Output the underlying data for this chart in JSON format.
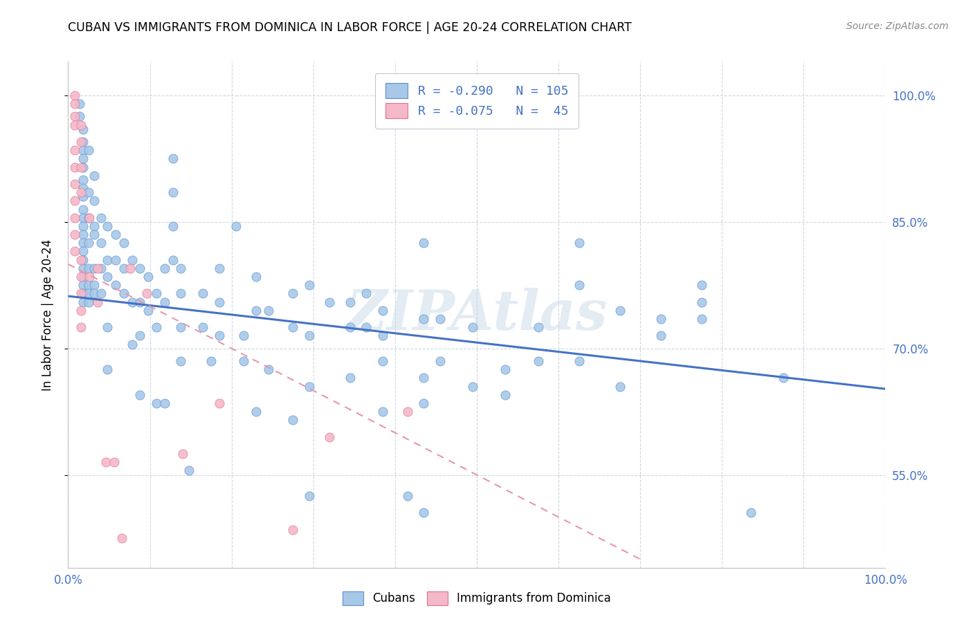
{
  "title": "CUBAN VS IMMIGRANTS FROM DOMINICA IN LABOR FORCE | AGE 20-24 CORRELATION CHART",
  "source": "Source: ZipAtlas.com",
  "ylabel": "In Labor Force | Age 20-24",
  "xlim": [
    0.0,
    1.0
  ],
  "ylim": [
    0.44,
    1.04
  ],
  "x_tick_vals": [
    0.0,
    0.1,
    0.2,
    0.3,
    0.4,
    0.5,
    0.6,
    0.7,
    0.8,
    0.9,
    1.0
  ],
  "x_tick_labels_bottom": [
    "0.0%",
    "",
    "",
    "",
    "",
    "",
    "",
    "",
    "",
    "",
    "100.0%"
  ],
  "y_tick_vals": [
    0.55,
    0.7,
    0.85,
    1.0
  ],
  "y_tick_labels_right": [
    "55.0%",
    "70.0%",
    "85.0%",
    "100.0%"
  ],
  "watermark": "ZIPAtlas",
  "blue_color": "#a8c8e8",
  "pink_color": "#f4b8c8",
  "blue_edge_color": "#5a8fd0",
  "pink_edge_color": "#e07090",
  "blue_line_color": "#4472c4",
  "pink_line_color": "#e896a8",
  "legend_text_color": "#4472c4",
  "blue_scatter": [
    [
      0.014,
      0.99
    ],
    [
      0.014,
      0.975
    ],
    [
      0.018,
      0.96
    ],
    [
      0.018,
      0.945
    ],
    [
      0.018,
      0.935
    ],
    [
      0.018,
      0.925
    ],
    [
      0.018,
      0.915
    ],
    [
      0.018,
      0.9
    ],
    [
      0.018,
      0.89
    ],
    [
      0.018,
      0.88
    ],
    [
      0.018,
      0.865
    ],
    [
      0.018,
      0.855
    ],
    [
      0.018,
      0.845
    ],
    [
      0.018,
      0.835
    ],
    [
      0.018,
      0.825
    ],
    [
      0.018,
      0.815
    ],
    [
      0.018,
      0.805
    ],
    [
      0.018,
      0.795
    ],
    [
      0.018,
      0.785
    ],
    [
      0.018,
      0.775
    ],
    [
      0.018,
      0.765
    ],
    [
      0.018,
      0.755
    ],
    [
      0.025,
      0.935
    ],
    [
      0.025,
      0.885
    ],
    [
      0.025,
      0.855
    ],
    [
      0.025,
      0.825
    ],
    [
      0.025,
      0.795
    ],
    [
      0.025,
      0.775
    ],
    [
      0.025,
      0.765
    ],
    [
      0.025,
      0.755
    ],
    [
      0.032,
      0.905
    ],
    [
      0.032,
      0.875
    ],
    [
      0.032,
      0.845
    ],
    [
      0.032,
      0.835
    ],
    [
      0.032,
      0.795
    ],
    [
      0.032,
      0.775
    ],
    [
      0.032,
      0.765
    ],
    [
      0.04,
      0.855
    ],
    [
      0.04,
      0.825
    ],
    [
      0.04,
      0.795
    ],
    [
      0.04,
      0.765
    ],
    [
      0.048,
      0.845
    ],
    [
      0.048,
      0.805
    ],
    [
      0.048,
      0.785
    ],
    [
      0.048,
      0.725
    ],
    [
      0.048,
      0.675
    ],
    [
      0.058,
      0.835
    ],
    [
      0.058,
      0.805
    ],
    [
      0.058,
      0.775
    ],
    [
      0.068,
      0.825
    ],
    [
      0.068,
      0.795
    ],
    [
      0.068,
      0.765
    ],
    [
      0.078,
      0.805
    ],
    [
      0.078,
      0.755
    ],
    [
      0.078,
      0.705
    ],
    [
      0.088,
      0.795
    ],
    [
      0.088,
      0.755
    ],
    [
      0.088,
      0.715
    ],
    [
      0.088,
      0.645
    ],
    [
      0.098,
      0.785
    ],
    [
      0.098,
      0.745
    ],
    [
      0.108,
      0.765
    ],
    [
      0.108,
      0.725
    ],
    [
      0.108,
      0.635
    ],
    [
      0.118,
      0.795
    ],
    [
      0.118,
      0.755
    ],
    [
      0.118,
      0.635
    ],
    [
      0.128,
      0.925
    ],
    [
      0.128,
      0.885
    ],
    [
      0.128,
      0.845
    ],
    [
      0.128,
      0.805
    ],
    [
      0.138,
      0.795
    ],
    [
      0.138,
      0.765
    ],
    [
      0.138,
      0.725
    ],
    [
      0.138,
      0.685
    ],
    [
      0.148,
      0.555
    ],
    [
      0.165,
      0.765
    ],
    [
      0.165,
      0.725
    ],
    [
      0.175,
      0.685
    ],
    [
      0.185,
      0.795
    ],
    [
      0.185,
      0.755
    ],
    [
      0.185,
      0.715
    ],
    [
      0.205,
      0.845
    ],
    [
      0.215,
      0.715
    ],
    [
      0.215,
      0.685
    ],
    [
      0.23,
      0.785
    ],
    [
      0.23,
      0.745
    ],
    [
      0.23,
      0.625
    ],
    [
      0.245,
      0.745
    ],
    [
      0.245,
      0.675
    ],
    [
      0.275,
      0.765
    ],
    [
      0.275,
      0.725
    ],
    [
      0.275,
      0.615
    ],
    [
      0.295,
      0.775
    ],
    [
      0.295,
      0.715
    ],
    [
      0.295,
      0.655
    ],
    [
      0.295,
      0.525
    ],
    [
      0.32,
      0.755
    ],
    [
      0.345,
      0.755
    ],
    [
      0.345,
      0.725
    ],
    [
      0.345,
      0.665
    ],
    [
      0.365,
      0.765
    ],
    [
      0.365,
      0.725
    ],
    [
      0.385,
      0.745
    ],
    [
      0.385,
      0.715
    ],
    [
      0.385,
      0.685
    ],
    [
      0.385,
      0.625
    ],
    [
      0.415,
      0.525
    ],
    [
      0.435,
      0.825
    ],
    [
      0.435,
      0.735
    ],
    [
      0.435,
      0.665
    ],
    [
      0.435,
      0.635
    ],
    [
      0.435,
      0.505
    ],
    [
      0.455,
      0.735
    ],
    [
      0.455,
      0.685
    ],
    [
      0.495,
      0.725
    ],
    [
      0.495,
      0.655
    ],
    [
      0.535,
      0.675
    ],
    [
      0.535,
      0.645
    ],
    [
      0.575,
      0.725
    ],
    [
      0.575,
      0.685
    ],
    [
      0.625,
      0.825
    ],
    [
      0.625,
      0.775
    ],
    [
      0.625,
      0.685
    ],
    [
      0.675,
      0.745
    ],
    [
      0.675,
      0.655
    ],
    [
      0.725,
      0.735
    ],
    [
      0.725,
      0.715
    ],
    [
      0.775,
      0.775
    ],
    [
      0.775,
      0.755
    ],
    [
      0.775,
      0.735
    ],
    [
      0.835,
      0.505
    ],
    [
      0.875,
      0.665
    ]
  ],
  "pink_scatter": [
    [
      0.008,
      1.0
    ],
    [
      0.008,
      0.99
    ],
    [
      0.008,
      0.975
    ],
    [
      0.008,
      0.965
    ],
    [
      0.008,
      0.935
    ],
    [
      0.008,
      0.915
    ],
    [
      0.008,
      0.895
    ],
    [
      0.008,
      0.875
    ],
    [
      0.008,
      0.855
    ],
    [
      0.008,
      0.835
    ],
    [
      0.008,
      0.815
    ],
    [
      0.016,
      0.965
    ],
    [
      0.016,
      0.945
    ],
    [
      0.016,
      0.915
    ],
    [
      0.016,
      0.885
    ],
    [
      0.016,
      0.805
    ],
    [
      0.016,
      0.785
    ],
    [
      0.016,
      0.765
    ],
    [
      0.016,
      0.745
    ],
    [
      0.016,
      0.725
    ],
    [
      0.026,
      0.855
    ],
    [
      0.026,
      0.785
    ],
    [
      0.036,
      0.795
    ],
    [
      0.036,
      0.755
    ],
    [
      0.046,
      0.565
    ],
    [
      0.056,
      0.565
    ],
    [
      0.066,
      0.475
    ],
    [
      0.076,
      0.795
    ],
    [
      0.096,
      0.765
    ],
    [
      0.14,
      0.575
    ],
    [
      0.185,
      0.635
    ],
    [
      0.275,
      0.485
    ],
    [
      0.32,
      0.595
    ],
    [
      0.415,
      0.625
    ]
  ],
  "blue_trend_x": [
    0.0,
    1.0
  ],
  "blue_trend_y": [
    0.762,
    0.652
  ],
  "pink_trend_x": [
    0.0,
    0.7
  ],
  "pink_trend_y": [
    0.8,
    0.45
  ]
}
